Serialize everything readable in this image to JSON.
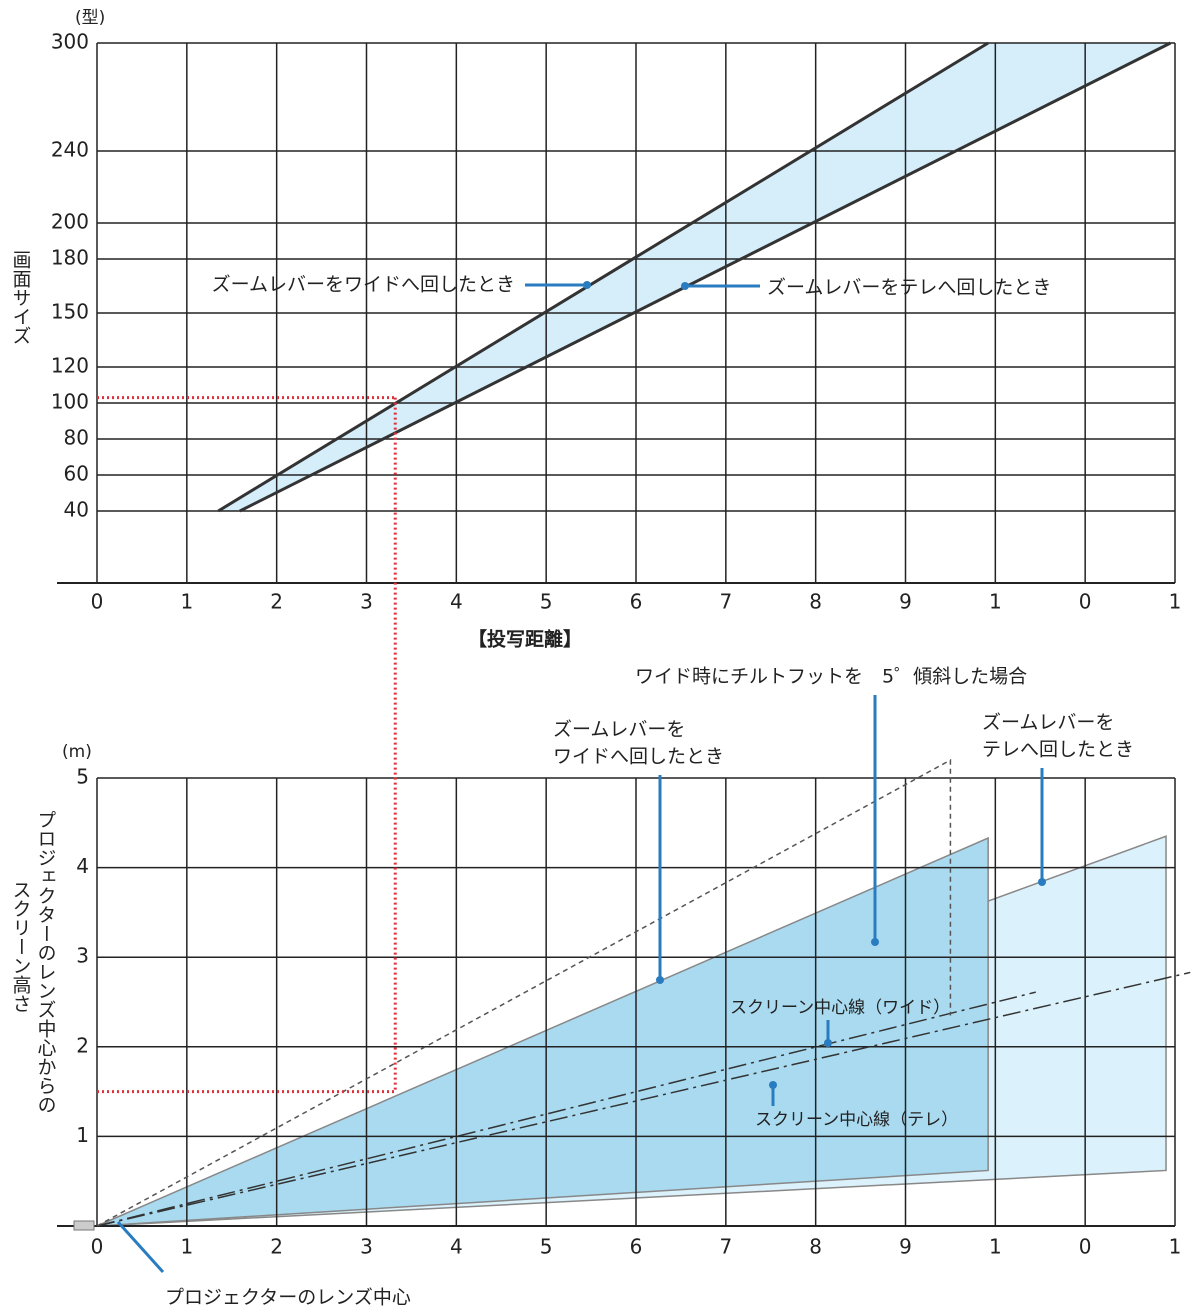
{
  "chart_data": [
    {
      "type": "line",
      "y_unit": "(型)",
      "ylabel": "画面サイズ",
      "xlabel": "【投写距離】",
      "xlim": [
        0,
        12
      ],
      "xticks": [
        0,
        1,
        2,
        3,
        4,
        5,
        6,
        7,
        8,
        9,
        {
          "value": 10,
          "label": "1"
        },
        {
          "value": 11,
          "label": "0"
        },
        {
          "value": 12,
          "label": "1"
        }
      ],
      "ylim": [
        0,
        300
      ],
      "yticks": [
        40,
        60,
        80,
        100,
        120,
        150,
        180,
        200,
        240,
        300
      ],
      "grid": true,
      "fill_color": "#d6eefa",
      "series": [
        {
          "name": "ズームレバーをワイドへ回したとき",
          "color": "#333333",
          "x": [
            1.35,
            9.92
          ],
          "values": [
            40,
            300
          ]
        },
        {
          "name": "ズームレバーをテレへ回したとき",
          "color": "#333333",
          "x": [
            1.59,
            11.95
          ],
          "values": [
            40,
            300
          ]
        }
      ],
      "reference": {
        "color": "#e0303a",
        "x": 3.32,
        "y": 103
      }
    },
    {
      "type": "zone",
      "y_unit": "(m)",
      "ylabel": [
        "プロジェクターのレンズ中心からの",
        "スクリーン高さ"
      ],
      "xlim": [
        0,
        12
      ],
      "xticks": [
        0,
        1,
        2,
        3,
        4,
        5,
        6,
        7,
        8,
        9,
        {
          "value": 10,
          "label": "1"
        },
        {
          "value": 11,
          "label": "0"
        },
        {
          "value": 12,
          "label": "1"
        }
      ],
      "ylim": [
        0,
        5
      ],
      "yticks": [
        1,
        2,
        3,
        4,
        5
      ],
      "grid": true,
      "zones": [
        {
          "name": [
            "ズームレバーを",
            "テレへ回したとき"
          ],
          "color": "#dbf1fb",
          "x": [
            0,
            11.9
          ],
          "upper": [
            0,
            4.35
          ],
          "lower": [
            0,
            0.62
          ]
        },
        {
          "name": [
            "ズームレバーを",
            "ワイドへ回したとき"
          ],
          "color": "#a9daf0",
          "x": [
            0,
            9.92
          ],
          "upper": [
            0,
            4.33
          ],
          "lower": [
            0,
            0.62
          ]
        }
      ],
      "center_lines": [
        {
          "name": "スクリーン中心線（ワイド）",
          "x": [
            0,
            10.45
          ],
          "values": [
            0,
            2.61
          ]
        },
        {
          "name": "スクリーン中心線（テレ）",
          "x": [
            0,
            12.17
          ],
          "values": [
            0,
            2.83
          ]
        }
      ],
      "tilt": {
        "name": "ワイド時にチルトフットを　5゜傾斜した場合",
        "x": [
          0,
          9.5,
          9.5
        ],
        "values": [
          0,
          5.2,
          2.35
        ]
      },
      "origin_label": "プロジェクターのレンズ中心",
      "reference": {
        "color": "#e0303a",
        "x": 3.32,
        "y": 1.5
      }
    }
  ]
}
